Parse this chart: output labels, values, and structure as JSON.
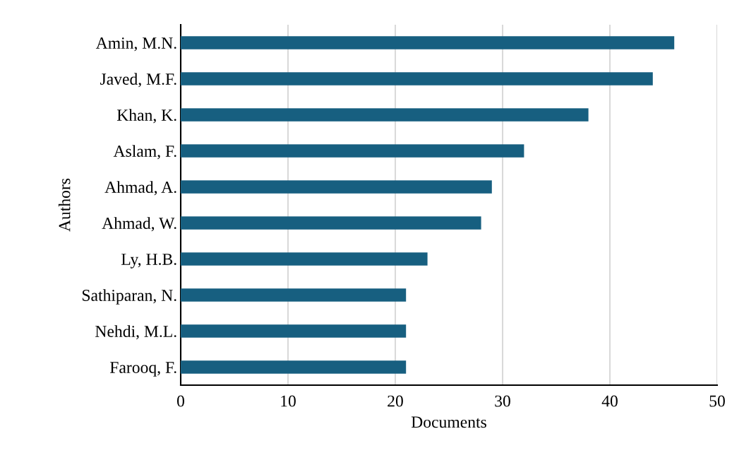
{
  "chart_data": {
    "type": "bar",
    "orientation": "horizontal",
    "xlabel": "Documents",
    "ylabel": "Authors",
    "categories": [
      "Amin, M.N.",
      "Javed, M.F.",
      "Khan, K.",
      "Aslam, F.",
      "Ahmad, A.",
      "Ahmad, W.",
      "Ly, H.B.",
      "Sathiparan, N.",
      "Nehdi, M.L.",
      "Farooq, F."
    ],
    "values": [
      46,
      44,
      38,
      32,
      29,
      28,
      23,
      21,
      21,
      21
    ],
    "color": "#175f80",
    "xlim": [
      0,
      50
    ],
    "xticks": [
      0,
      10,
      20,
      30,
      40,
      50
    ],
    "grid": "x"
  }
}
